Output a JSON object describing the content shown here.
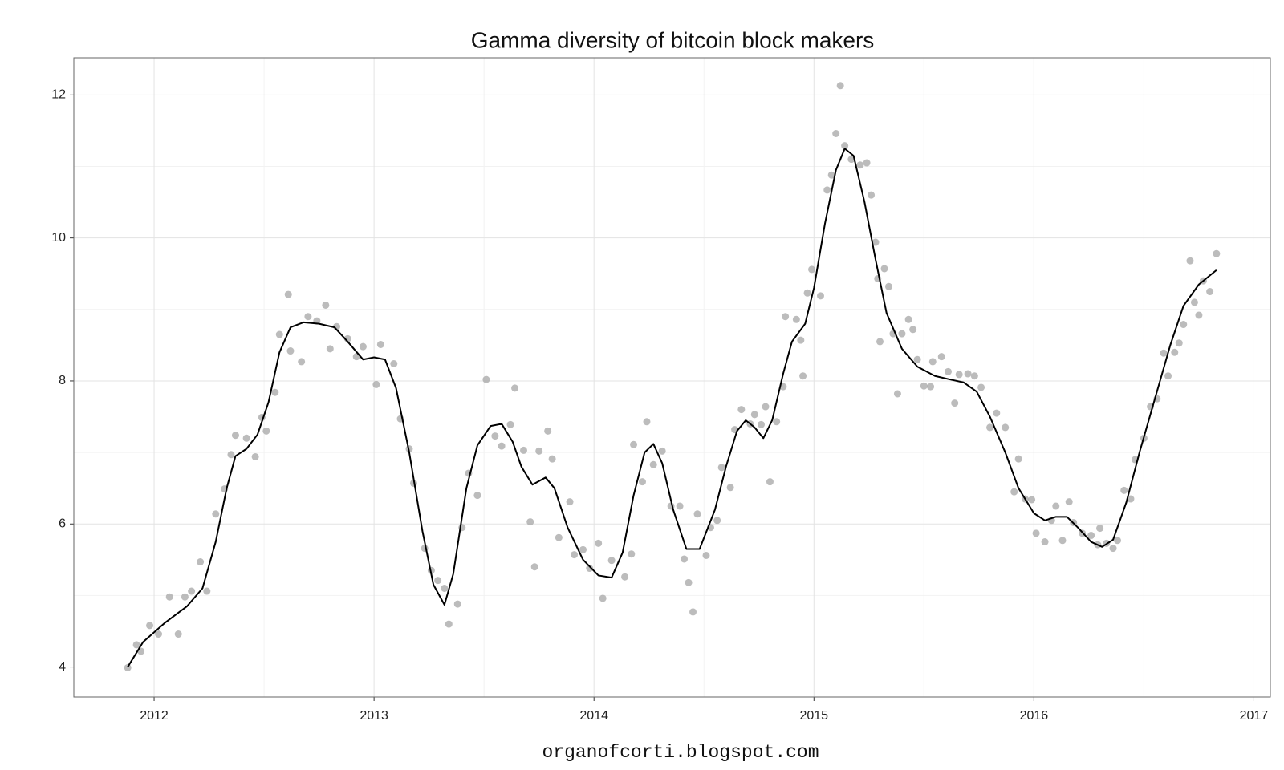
{
  "chart_data": {
    "type": "scatter",
    "title": "Gamma diversity of bitcoin block makers",
    "footer": "organofcorti.blogspot.com",
    "xlim": [
      2011.635,
      2017.075
    ],
    "ylim": [
      3.58,
      12.52
    ],
    "xticks": [
      2012,
      2013,
      2014,
      2015,
      2016,
      2017
    ],
    "yticks": [
      4,
      6,
      8,
      10,
      12
    ],
    "grid": true,
    "minor_grid": true,
    "series": [
      {
        "type": "scatter",
        "color": "#a6a6a6",
        "x": [
          2011.88,
          2011.92,
          2011.94,
          2011.98,
          2012.02,
          2012.07,
          2012.11,
          2012.14,
          2012.17,
          2012.21,
          2012.24,
          2012.28,
          2012.32,
          2012.35,
          2012.37,
          2012.42,
          2012.46,
          2012.49,
          2012.51,
          2012.55,
          2012.57,
          2012.61,
          2012.62,
          2012.67,
          2012.7,
          2012.74,
          2012.78,
          2012.8,
          2012.83,
          2012.88,
          2012.92,
          2012.95,
          2013.01,
          2013.03,
          2013.09,
          2013.12,
          2013.16,
          2013.18,
          2013.23,
          2013.26,
          2013.29,
          2013.32,
          2013.34,
          2013.38,
          2013.4,
          2013.43,
          2013.47,
          2013.51,
          2013.55,
          2013.58,
          2013.62,
          2013.64,
          2013.68,
          2013.71,
          2013.73,
          2013.75,
          2013.79,
          2013.81,
          2013.84,
          2013.89,
          2013.91,
          2013.95,
          2013.98,
          2014.02,
          2014.04,
          2014.08,
          2014.14,
          2014.17,
          2014.18,
          2014.22,
          2014.24,
          2014.27,
          2014.31,
          2014.35,
          2014.39,
          2014.41,
          2014.43,
          2014.45,
          2014.47,
          2014.51,
          2014.53,
          2014.56,
          2014.58,
          2014.62,
          2014.64,
          2014.67,
          2014.71,
          2014.73,
          2014.76,
          2014.78,
          2014.8,
          2014.83,
          2014.86,
          2014.87,
          2014.92,
          2014.94,
          2014.95,
          2014.97,
          2014.99,
          2015.03,
          2015.06,
          2015.08,
          2015.1,
          2015.12,
          2015.14,
          2015.17,
          2015.21,
          2015.24,
          2015.26,
          2015.28,
          2015.29,
          2015.3,
          2015.32,
          2015.34,
          2015.36,
          2015.38,
          2015.4,
          2015.43,
          2015.45,
          2015.47,
          2015.5,
          2015.53,
          2015.54,
          2015.58,
          2015.61,
          2015.64,
          2015.66,
          2015.7,
          2015.73,
          2015.76,
          2015.8,
          2015.83,
          2015.87,
          2015.91,
          2015.93,
          2015.96,
          2015.99,
          2016.01,
          2016.05,
          2016.08,
          2016.1,
          2016.13,
          2016.16,
          2016.18,
          2016.22,
          2016.26,
          2016.29,
          2016.3,
          2016.33,
          2016.36,
          2016.38,
          2016.41,
          2016.44,
          2016.46,
          2016.5,
          2016.53,
          2016.56,
          2016.59,
          2016.61,
          2016.64,
          2016.66,
          2016.68,
          2016.71,
          2016.73,
          2016.75,
          2016.77,
          2016.8,
          2016.83
        ],
        "values": [
          3.99,
          4.31,
          4.22,
          4.58,
          4.46,
          4.98,
          4.46,
          4.98,
          5.06,
          5.47,
          5.06,
          6.14,
          6.49,
          6.97,
          7.24,
          7.2,
          6.94,
          7.49,
          7.3,
          7.84,
          8.65,
          9.21,
          8.42,
          8.27,
          8.9,
          8.84,
          9.06,
          8.45,
          8.76,
          8.59,
          8.34,
          8.48,
          7.95,
          8.51,
          8.24,
          7.47,
          7.05,
          6.57,
          5.66,
          5.35,
          5.21,
          5.1,
          4.6,
          4.88,
          5.95,
          6.71,
          6.4,
          8.02,
          7.23,
          7.09,
          7.39,
          7.9,
          7.03,
          6.03,
          5.4,
          7.02,
          7.3,
          6.91,
          5.81,
          6.31,
          5.57,
          5.64,
          5.38,
          5.73,
          4.96,
          5.49,
          5.26,
          5.58,
          7.11,
          6.59,
          7.43,
          6.83,
          7.02,
          6.25,
          6.25,
          5.51,
          5.18,
          4.77,
          6.14,
          5.56,
          5.95,
          6.05,
          6.79,
          6.51,
          7.32,
          7.6,
          7.4,
          7.53,
          7.39,
          7.64,
          6.59,
          7.43,
          7.92,
          8.9,
          8.86,
          8.57,
          8.07,
          9.23,
          9.56,
          9.19,
          10.67,
          10.88,
          11.46,
          12.13,
          11.29,
          11.1,
          11.02,
          11.05,
          10.6,
          9.94,
          9.43,
          8.55,
          9.57,
          9.32,
          8.66,
          7.82,
          8.66,
          8.86,
          8.72,
          8.3,
          7.93,
          7.92,
          8.27,
          8.34,
          8.13,
          7.69,
          8.09,
          8.1,
          8.07,
          7.91,
          7.35,
          7.55,
          7.35,
          6.45,
          6.91,
          6.35,
          6.34,
          5.87,
          5.75,
          6.05,
          6.25,
          5.77,
          6.31,
          6.02,
          5.87,
          5.84,
          5.71,
          5.94,
          5.73,
          5.66,
          5.77,
          6.47,
          6.35,
          6.9,
          7.2,
          7.64,
          7.75,
          8.39,
          8.07,
          8.4,
          8.53,
          8.79,
          9.68,
          9.1,
          8.92,
          9.4,
          9.25,
          9.78
        ]
      },
      {
        "type": "line",
        "color": "#000000",
        "x": [
          2011.88,
          2011.95,
          2012.05,
          2012.15,
          2012.22,
          2012.28,
          2012.33,
          2012.37,
          2012.42,
          2012.47,
          2012.52,
          2012.57,
          2012.62,
          2012.68,
          2012.75,
          2012.82,
          2012.88,
          2012.95,
          2013.0,
          2013.05,
          2013.1,
          2013.16,
          2013.22,
          2013.27,
          2013.32,
          2013.36,
          2013.42,
          2013.47,
          2013.53,
          2013.58,
          2013.63,
          2013.67,
          2013.72,
          2013.78,
          2013.82,
          2013.88,
          2013.95,
          2014.02,
          2014.08,
          2014.13,
          2014.18,
          2014.23,
          2014.27,
          2014.31,
          2014.36,
          2014.42,
          2014.48,
          2014.55,
          2014.6,
          2014.65,
          2014.69,
          2014.73,
          2014.77,
          2014.81,
          2014.86,
          2014.9,
          2014.96,
          2015.0,
          2015.05,
          2015.1,
          2015.14,
          2015.18,
          2015.23,
          2015.28,
          2015.33,
          2015.4,
          2015.47,
          2015.55,
          2015.62,
          2015.68,
          2015.74,
          2015.8,
          2015.87,
          2015.93,
          2016.0,
          2016.05,
          2016.1,
          2016.15,
          2016.2,
          2016.26,
          2016.31,
          2016.36,
          2016.42,
          2016.48,
          2016.55,
          2016.62,
          2016.68,
          2016.75,
          2016.83
        ],
        "values": [
          4.0,
          4.35,
          4.62,
          4.85,
          5.1,
          5.75,
          6.5,
          6.95,
          7.05,
          7.25,
          7.7,
          8.4,
          8.75,
          8.82,
          8.8,
          8.75,
          8.55,
          8.3,
          8.33,
          8.3,
          7.9,
          7.0,
          5.9,
          5.15,
          4.87,
          5.3,
          6.5,
          7.1,
          7.37,
          7.4,
          7.15,
          6.8,
          6.55,
          6.65,
          6.5,
          5.95,
          5.5,
          5.28,
          5.25,
          5.6,
          6.4,
          7.0,
          7.12,
          6.85,
          6.2,
          5.65,
          5.65,
          6.2,
          6.8,
          7.3,
          7.45,
          7.35,
          7.2,
          7.45,
          8.1,
          8.55,
          8.8,
          9.3,
          10.2,
          10.95,
          11.25,
          11.15,
          10.5,
          9.7,
          8.95,
          8.45,
          8.2,
          8.07,
          8.02,
          7.98,
          7.85,
          7.5,
          7.0,
          6.5,
          6.15,
          6.05,
          6.1,
          6.1,
          5.95,
          5.75,
          5.68,
          5.78,
          6.3,
          7.0,
          7.75,
          8.5,
          9.05,
          9.35,
          9.55
        ]
      }
    ]
  }
}
